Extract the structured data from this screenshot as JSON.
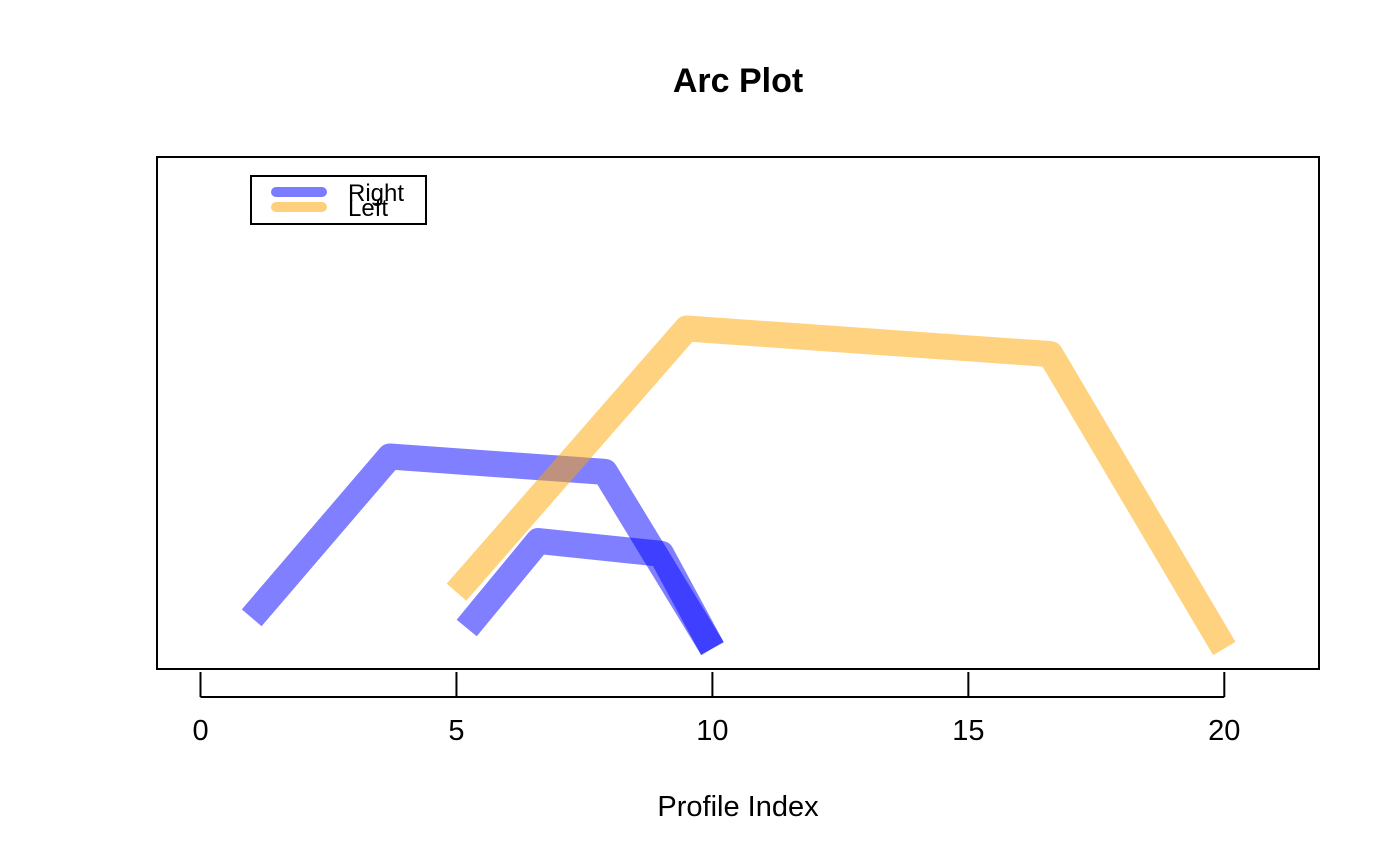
{
  "chart_data": {
    "type": "line",
    "title": "Arc Plot",
    "xlabel": "Profile Index",
    "ylabel": "",
    "xlim": [
      -0.85,
      21.85
    ],
    "ylim": [
      0,
      1
    ],
    "x_ticks": [
      0,
      5,
      10,
      15,
      20
    ],
    "y_axis_visible": false,
    "grid": false,
    "legend": {
      "position": "top-left",
      "entries": [
        {
          "label": "Right",
          "color": "#7b7bff"
        },
        {
          "label": "Left",
          "color": "#fecf7c"
        }
      ]
    },
    "series": [
      {
        "name": "Right",
        "color": "#0000ff",
        "opacity": 0.5,
        "arcs": [
          {
            "points": [
              [
                1,
                0.1
              ],
              [
                3.7,
                0.415
              ],
              [
                7.9,
                0.385
              ],
              [
                10,
                0.04
              ]
            ]
          },
          {
            "points": [
              [
                5.2,
                0.08
              ],
              [
                6.6,
                0.25
              ],
              [
                9,
                0.225
              ],
              [
                10,
                0.04
              ]
            ]
          }
        ]
      },
      {
        "name": "Left",
        "color": "#ffa500",
        "opacity": 0.5,
        "arcs": [
          {
            "points": [
              [
                5,
                0.15
              ],
              [
                9.5,
                0.665
              ],
              [
                16.6,
                0.615
              ],
              [
                20,
                0.04
              ]
            ]
          }
        ]
      }
    ]
  }
}
